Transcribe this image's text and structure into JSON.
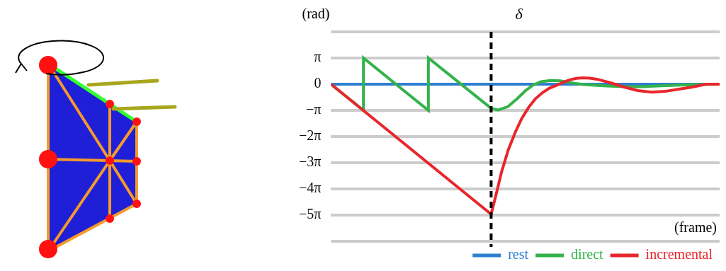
{
  "chart_data": {
    "type": "line",
    "y_label": "(rad)",
    "x_label": "(frame)",
    "xlim": [
      0,
      100
    ],
    "ylim": [
      -18.85,
      6.28
    ],
    "yticks": [
      {
        "value": 3.14,
        "label": "π"
      },
      0,
      {
        "value": -3.14,
        "label": "−π"
      },
      {
        "value": -6.28,
        "label": "−2π"
      },
      {
        "value": -9.42,
        "label": "−3π"
      },
      {
        "value": -12.57,
        "label": "−4π"
      },
      {
        "value": -15.71,
        "label": "−5π"
      }
    ],
    "grid": true,
    "legend": "bottom",
    "tick_labels": "y",
    "annotations": [
      {
        "text": "δ",
        "x": 41.2
      }
    ],
    "series": [
      {
        "name": "rest",
        "color": "#2f7fd0",
        "x": [
          0,
          100
        ],
        "values": [
          0,
          0
        ]
      },
      {
        "name": "direct",
        "color": "#33b34a",
        "x": [
          0,
          8.35,
          8.35,
          25.05,
          25.05,
          41.2,
          43,
          45.5,
          48,
          50,
          52,
          54,
          56.5,
          59,
          62,
          65,
          70,
          75,
          80,
          85,
          90,
          95,
          100
        ],
        "values": [
          0,
          -3.14,
          3.14,
          -3.14,
          3.14,
          -2.9,
          -3.1,
          -2.7,
          -1.7,
          -0.8,
          -0.1,
          0.3,
          0.45,
          0.4,
          0.15,
          -0.05,
          -0.2,
          -0.3,
          -0.3,
          -0.2,
          -0.1,
          -0.05,
          0
        ]
      },
      {
        "name": "incremental",
        "color": "#e8262c",
        "x": [
          0,
          41.2,
          42.5,
          43.9,
          45.6,
          47.4,
          49.1,
          50.9,
          52.6,
          54.4,
          56.1,
          57.9,
          59.6,
          61.4,
          63.1,
          64.9,
          66.6,
          68.4,
          71.9,
          75.4,
          78.9,
          82.5,
          86,
          89.5,
          93,
          96.5,
          100
        ],
        "values": [
          0,
          -15.6,
          -13.2,
          -10.5,
          -7.9,
          -5.77,
          -4.1,
          -2.75,
          -1.75,
          -1.03,
          -0.5,
          -0.17,
          0.2,
          0.52,
          0.7,
          0.77,
          0.72,
          0.6,
          0.17,
          -0.34,
          -0.77,
          -0.95,
          -0.86,
          -0.6,
          -0.34,
          0,
          0
        ]
      }
    ]
  }
}
